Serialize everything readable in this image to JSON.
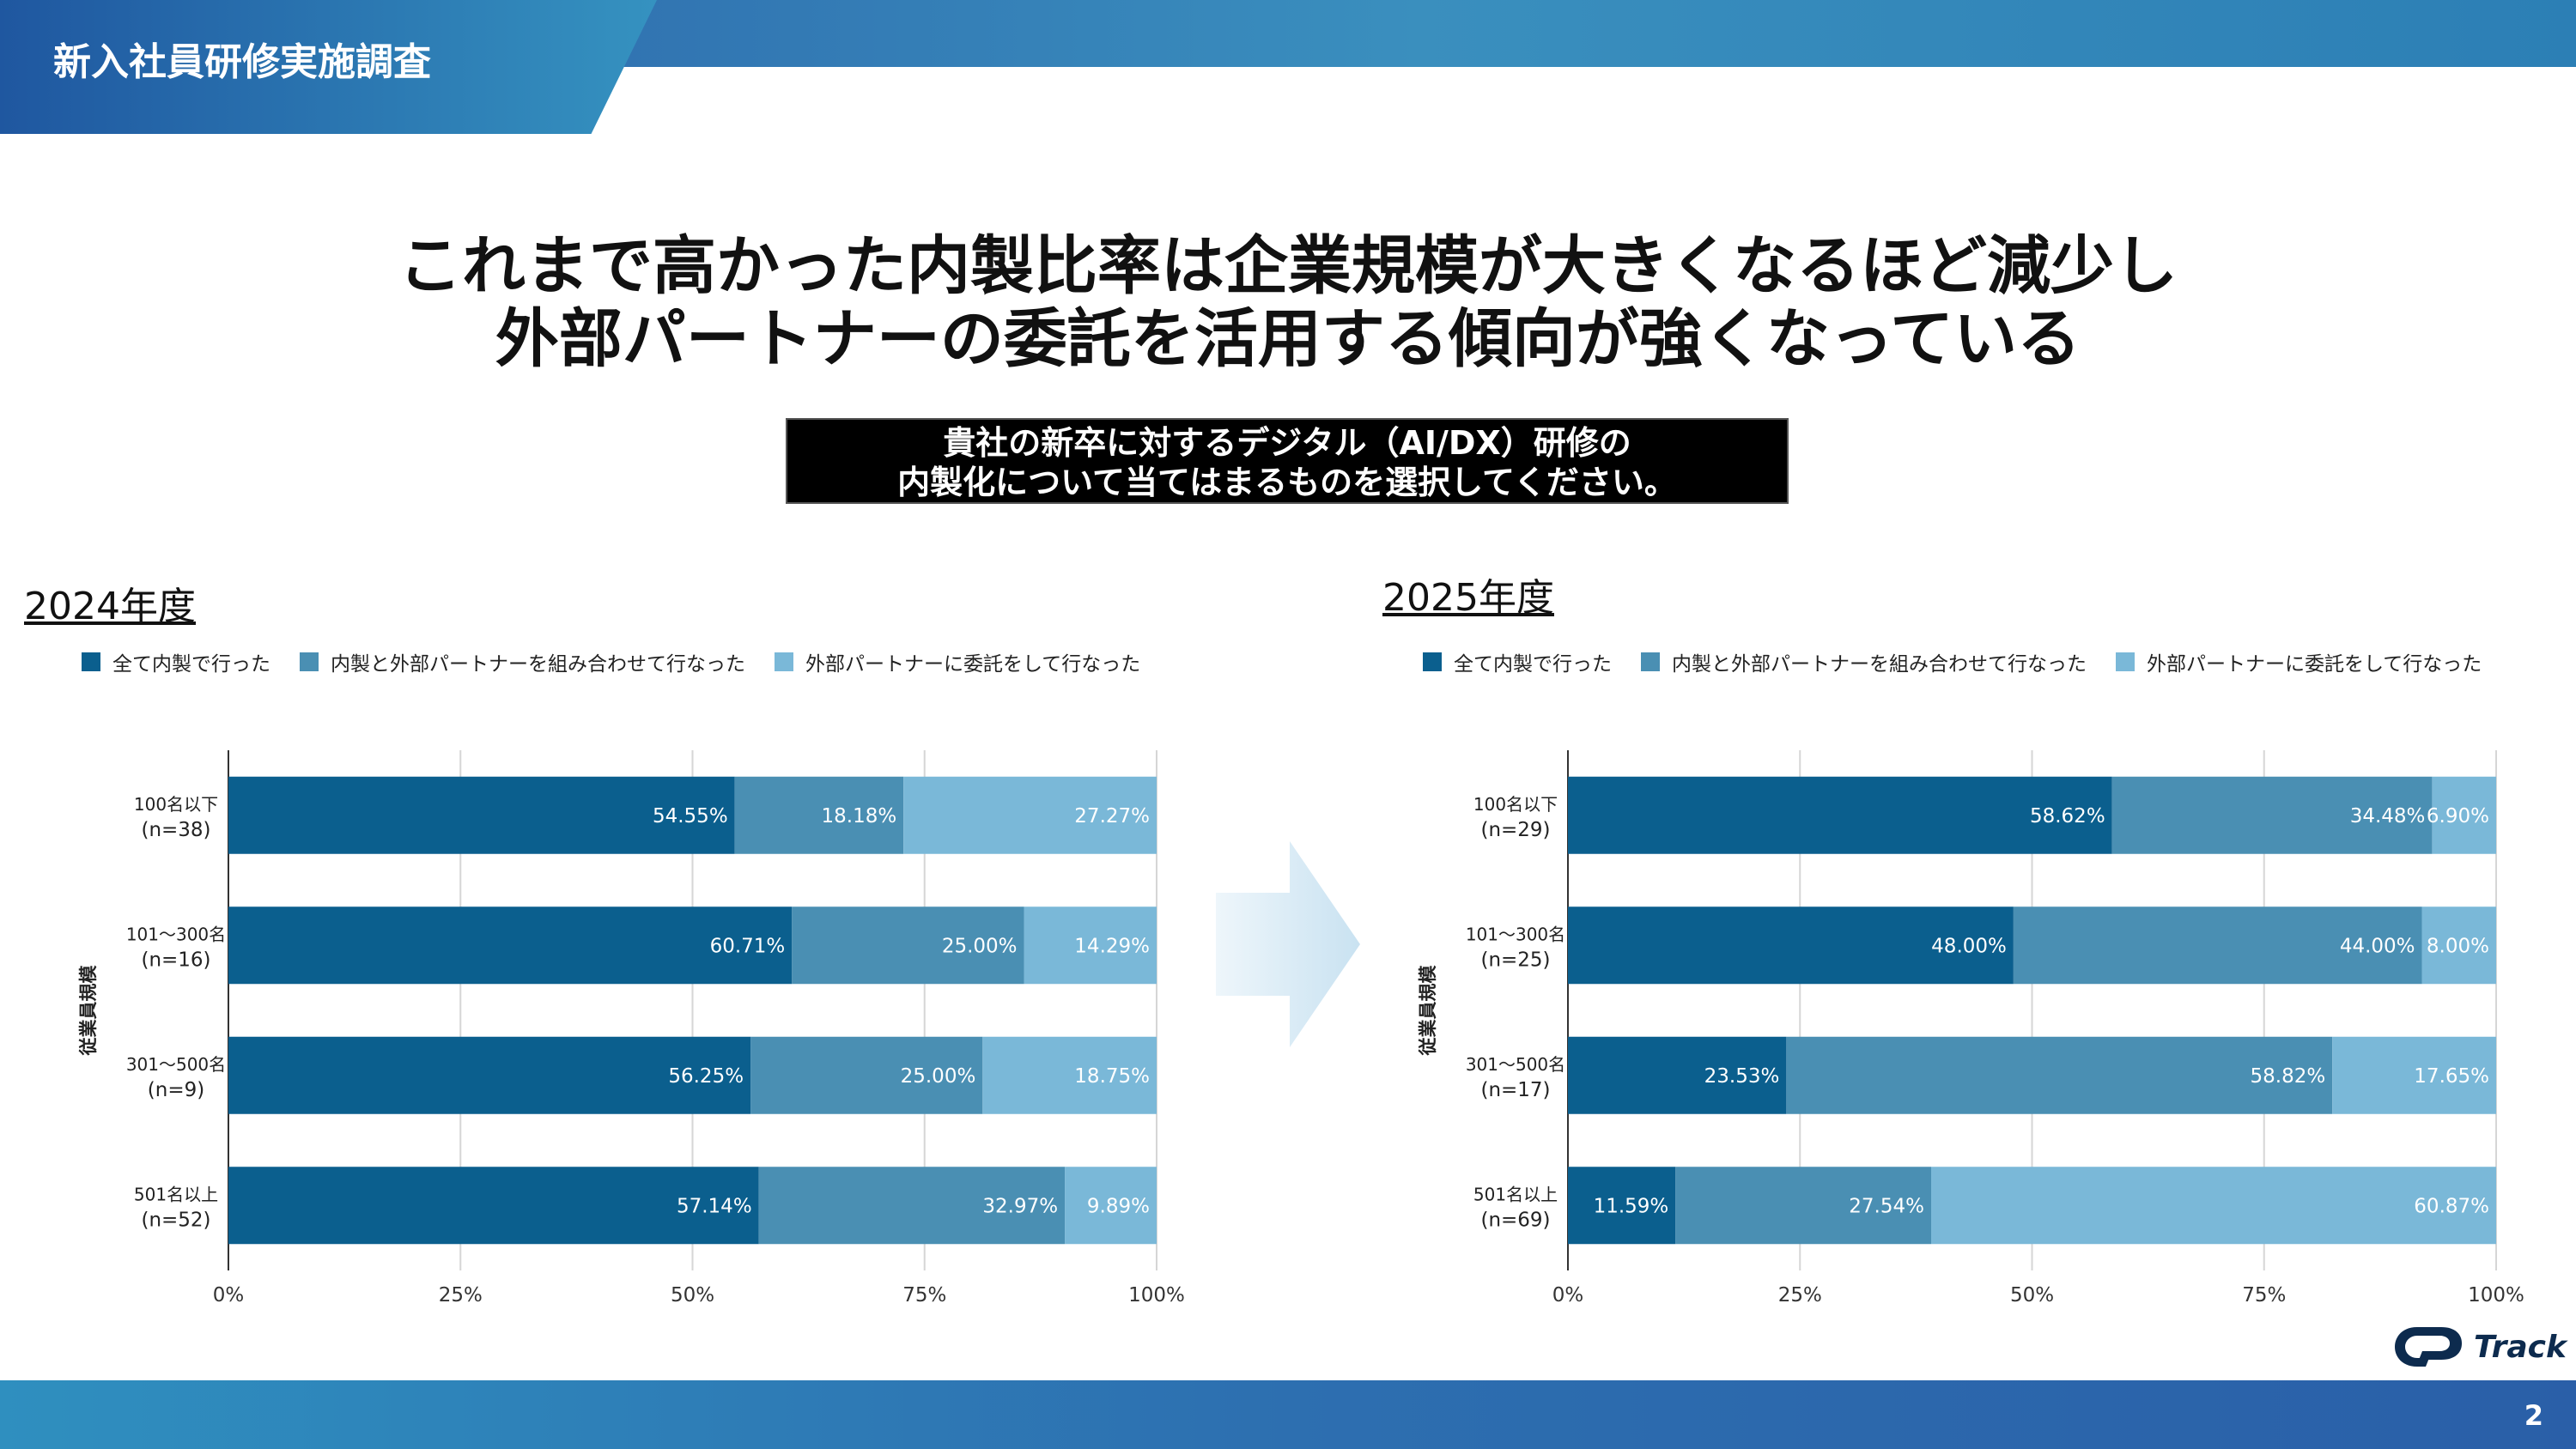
{
  "header": {
    "title": "新入社員研修実施調査"
  },
  "headline": {
    "line1": "これまで高かった内製比率は企業規模が大きくなるほど減少し",
    "line2": "外部パートナーの委託を活用する傾向が強くなっている"
  },
  "question": {
    "line1": "貴社の新卒に対するデジタル（AI/DX）研修の",
    "line2": "内製化について当てはまるものを選択してください。"
  },
  "colors": {
    "s1": "#0b5f8e",
    "s2": "#4a8fb3",
    "s3": "#7ab8d8"
  },
  "legend": [
    "全て内製で行った",
    "内製と外部パートナーを組み合わせて行なった",
    "外部パートナーに委託をして行なった"
  ],
  "logo": {
    "text": "Track",
    "icon": "cp-logo-icon"
  },
  "page": {
    "number": "2"
  },
  "chart_data": [
    {
      "type": "bar",
      "stacked": true,
      "orientation": "horizontal",
      "title": "2024年度",
      "ylabel": "従業員規模",
      "xlim": [
        0,
        100
      ],
      "xticks": [
        "0%",
        "25%",
        "50%",
        "75%",
        "100%"
      ],
      "categories": [
        {
          "name": "100名以下",
          "n": "(n=38)"
        },
        {
          "name": "101～300名",
          "n": "(n=16)"
        },
        {
          "name": "301～500名",
          "n": "(n=9)"
        },
        {
          "name": "501名以上",
          "n": "(n=52)"
        }
      ],
      "series": [
        {
          "name": "全て内製で行った",
          "values": [
            54.55,
            60.71,
            56.25,
            57.14
          ],
          "labels": [
            "54.55%",
            "60.71%",
            "56.25%",
            "57.14%"
          ]
        },
        {
          "name": "内製と外部パートナーを組み合わせて行なった",
          "values": [
            18.18,
            25.0,
            25.0,
            32.97
          ],
          "labels": [
            "18.18%",
            "25.00%",
            "25.00%",
            "32.97%"
          ]
        },
        {
          "name": "外部パートナーに委託をして行なった",
          "values": [
            27.27,
            14.29,
            18.75,
            9.89
          ],
          "labels": [
            "27.27%",
            "14.29%",
            "18.75%",
            "9.89%"
          ]
        }
      ]
    },
    {
      "type": "bar",
      "stacked": true,
      "orientation": "horizontal",
      "title": "2025年度",
      "ylabel": "従業員規模",
      "xlim": [
        0,
        100
      ],
      "xticks": [
        "0%",
        "25%",
        "50%",
        "75%",
        "100%"
      ],
      "categories": [
        {
          "name": "100名以下",
          "n": "(n=29)"
        },
        {
          "name": "101～300名",
          "n": "(n=25)"
        },
        {
          "name": "301～500名",
          "n": "(n=17)"
        },
        {
          "name": "501名以上",
          "n": "(n=69)"
        }
      ],
      "series": [
        {
          "name": "全て内製で行った",
          "values": [
            58.62,
            48.0,
            23.53,
            11.59
          ],
          "labels": [
            "58.62%",
            "48.00%",
            "23.53%",
            "11.59%"
          ]
        },
        {
          "name": "内製と外部パートナーを組み合わせて行なった",
          "values": [
            34.48,
            44.0,
            58.82,
            27.54
          ],
          "labels": [
            "34.48%",
            "44.00%",
            "58.82%",
            "27.54%"
          ]
        },
        {
          "name": "外部パートナーに委託をして行なった",
          "values": [
            6.9,
            8.0,
            17.65,
            60.87
          ],
          "labels": [
            "6.90%",
            "8.00%",
            "17.65%",
            "60.87%"
          ]
        }
      ]
    }
  ]
}
